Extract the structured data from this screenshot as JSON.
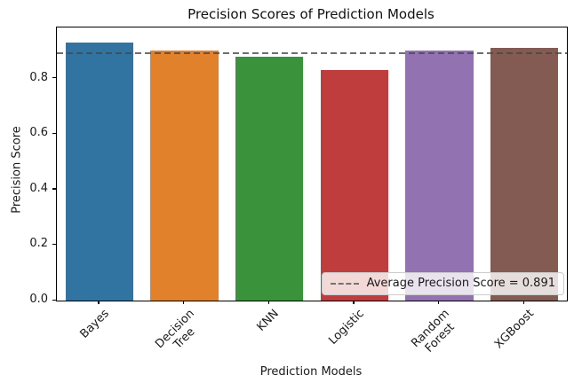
{
  "chart_data": {
    "type": "bar",
    "title": "Precision Scores of Prediction Models",
    "xlabel": "Prediction Models",
    "ylabel": "Precision Score",
    "categories": [
      "Bayes",
      "Decision Tree",
      "KNN",
      "Logistic",
      "Random Forest",
      "XGBoost"
    ],
    "x_tick_display_lines": [
      [
        "Bayes"
      ],
      [
        "Decision",
        "Tree"
      ],
      [
        "KNN"
      ],
      [
        "Logistic"
      ],
      [
        "Random",
        "Forest"
      ],
      [
        "XGBoost"
      ]
    ],
    "values": [
      0.93,
      0.9,
      0.88,
      0.83,
      0.9,
      0.91
    ],
    "bar_colors": [
      "#3274a1",
      "#e1812c",
      "#3a923a",
      "#c03d3e",
      "#9372b2",
      "#845b53"
    ],
    "ylim": [
      0,
      0.984
    ],
    "y_ticks": [
      0.0,
      0.2,
      0.4,
      0.6,
      0.8
    ],
    "y_tick_labels": [
      "0.0",
      "0.2",
      "0.4",
      "0.6",
      "0.8"
    ],
    "x_tick_rotation_deg": 45,
    "grid": false,
    "background_color": "#ffffff",
    "average_line": {
      "value": 0.891,
      "style": "dashed",
      "color": "#737373"
    },
    "legend": {
      "position": "lower right",
      "entries": [
        {
          "marker": "dashed-line",
          "label": "Average Precision Score = 0.891"
        }
      ]
    }
  }
}
